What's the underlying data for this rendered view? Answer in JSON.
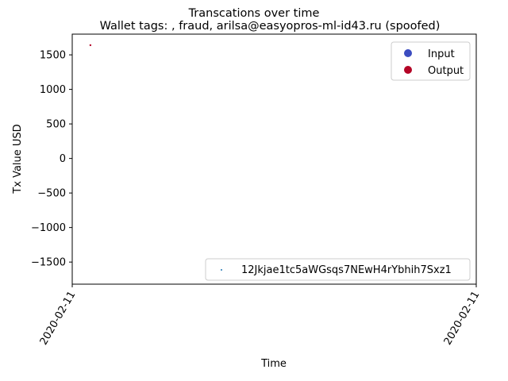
{
  "chart_data": {
    "type": "scatter",
    "title": "Transcations over time",
    "subtitle": "Wallet tags: , fraud, arilsa@easyopros-ml-id43.ru (spoofed)",
    "xlabel": "Time",
    "ylabel": "Tx Value USD",
    "ylim": [
      -1820,
      1800
    ],
    "yticks": [
      -1500,
      -1000,
      -500,
      0,
      500,
      1000,
      1500
    ],
    "ytick_labels": [
      "−1500",
      "−1000",
      "−500",
      "0",
      "500",
      "1000",
      "1500"
    ],
    "xticks": [
      0,
      1
    ],
    "xtick_labels": [
      "2020-02-11",
      "2020-02-11"
    ],
    "xlim": [
      0,
      1
    ],
    "grid": false,
    "series": [
      {
        "name": "Output",
        "color": "#b40426",
        "points": [
          {
            "x": 0.045,
            "y": 1640
          }
        ]
      }
    ],
    "legend_top": {
      "placement": "top-right",
      "entries": [
        {
          "label": "Input",
          "color": "#3b4cc0"
        },
        {
          "label": "Output",
          "color": "#b40426"
        }
      ]
    },
    "legend_bottom": {
      "placement": "lower-right",
      "entries": [
        {
          "label": "12Jkjae1tc5aWGsqs7NEwH4rYbhih7Sxz1",
          "color": "#1f77b4"
        }
      ]
    }
  }
}
